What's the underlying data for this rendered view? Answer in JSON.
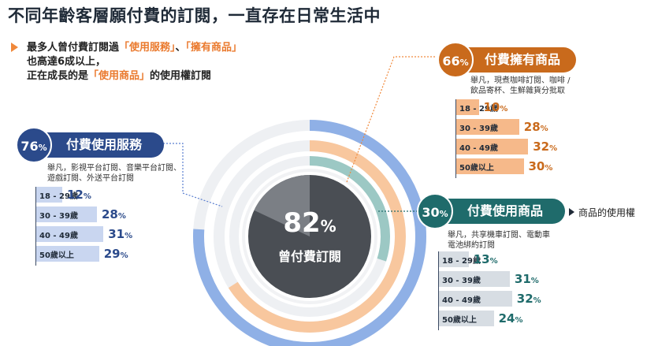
{
  "title": "不同年齡客層願付費的訂閱，一直存在日常生活中",
  "summary": {
    "line1_pre": "最多人曾付費訂閱過",
    "line1_hl1": "「使用服務」",
    "line1_sep": "、",
    "line1_hl2": "「擁有商品」",
    "line2": "也高達6成以上，",
    "line3_pre": "正在成長的是",
    "line3_hl": "「使用商品」",
    "line3_post": "的使用權訂閱"
  },
  "center": {
    "pct": "82",
    "pct_unit": "%",
    "label": "曾付費訂閱"
  },
  "usage_label": "商品的使用權",
  "colors": {
    "service": "#2b4a8b",
    "service_bar": "#c9d6f0",
    "own": "#c96a1c",
    "own_bar": "#f6b98a",
    "use": "#1f6b6b",
    "use_bar": "#d7dde3",
    "center": "#55595f"
  },
  "chart_data": {
    "type": "bar",
    "categories": [
      "18 - 29歲",
      "30 - 39歲",
      "40 - 49歲",
      "50歲以上"
    ],
    "series": [
      {
        "name": "付費使用服務",
        "total": 76,
        "values": [
          12,
          28,
          31,
          29
        ]
      },
      {
        "name": "付費擁有商品",
        "total": 66,
        "values": [
          10,
          28,
          32,
          30
        ]
      },
      {
        "name": "付費使用商品",
        "total": 30,
        "values": [
          13,
          31,
          32,
          24
        ]
      }
    ],
    "overall": 82,
    "unit": "%"
  },
  "service": {
    "pct": "76",
    "unit": "%",
    "title": "付費使用服務",
    "desc1": "舉凡，影視平台訂閱、音樂平台訂閱、",
    "desc2": "遊戲訂閱、外送平台訂閱",
    "rows": [
      {
        "label": "18 - 29歲",
        "value": "12",
        "unit": "%"
      },
      {
        "label": "30 - 39歲",
        "value": "28",
        "unit": "%"
      },
      {
        "label": "40 - 49歲",
        "value": "31",
        "unit": "%"
      },
      {
        "label": "50歲以上",
        "value": "29",
        "unit": "%"
      }
    ]
  },
  "own": {
    "pct": "66",
    "unit": "%",
    "title": "付費擁有商品",
    "desc1": "舉凡，現煮咖啡訂閱、咖啡 /",
    "desc2": "飲品寄杯、生鮮雜貨分批取",
    "rows": [
      {
        "label": "18 - 29歲",
        "value": "10",
        "unit": "%"
      },
      {
        "label": "30 - 39歲",
        "value": "28",
        "unit": "%"
      },
      {
        "label": "40 - 49歲",
        "value": "32",
        "unit": "%"
      },
      {
        "label": "50歲以上",
        "value": "30",
        "unit": "%"
      }
    ]
  },
  "use": {
    "pct": "30",
    "unit": "%",
    "title": "付費使用商品",
    "desc1": "舉凡，共享機車訂閱、電動車",
    "desc2": "電池綁約訂閱",
    "rows": [
      {
        "label": "18 - 29歲",
        "value": "13",
        "unit": "%"
      },
      {
        "label": "30 - 39歲",
        "value": "31",
        "unit": "%"
      },
      {
        "label": "40 - 49歲",
        "value": "32",
        "unit": "%"
      },
      {
        "label": "50歲以上",
        "value": "24",
        "unit": "%"
      }
    ]
  }
}
